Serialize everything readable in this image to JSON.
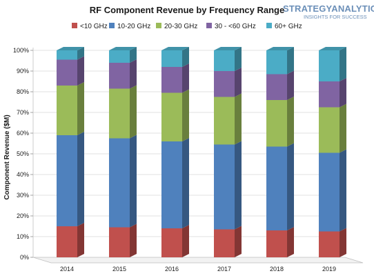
{
  "header": {
    "brand_name": "STRATEGYANALYTICS",
    "brand_tagline": "INSIGHTS FOR SUCCESS"
  },
  "colors": {
    "lt10": "#c0504d",
    "g10_20": "#4f81bd",
    "g20_30": "#9bbb59",
    "g30_60": "#8064a2",
    "g60p": "#4bacc6",
    "brand": "#6b8fb8"
  },
  "chart_data": {
    "type": "bar",
    "stacked": true,
    "percent": true,
    "title": "RF Component Revenue by Frequency Range",
    "xlabel": "",
    "ylabel": "Component Revenue ($M)",
    "categories": [
      "2014",
      "2015",
      "2016",
      "2017",
      "2018",
      "2019"
    ],
    "y_ticks": [
      "0%",
      "10%",
      "20%",
      "30%",
      "40%",
      "50%",
      "60%",
      "70%",
      "80%",
      "90%",
      "100%"
    ],
    "ylim": [
      0,
      100
    ],
    "legend_position": "top",
    "series": [
      {
        "name": "<10 GHz",
        "color_key": "lt10",
        "values": [
          15,
          14.5,
          14,
          13.5,
          13,
          12.5
        ]
      },
      {
        "name": "10-20 GHz",
        "color_key": "g10_20",
        "values": [
          44,
          43,
          42,
          41,
          40.5,
          38
        ]
      },
      {
        "name": "20-30 GHz",
        "color_key": "g20_30",
        "values": [
          24,
          24,
          23.5,
          23,
          22.5,
          22
        ]
      },
      {
        "name": "30 - <60 GHz",
        "color_key": "g30_60",
        "values": [
          12.5,
          12.5,
          12.5,
          12.5,
          12.5,
          12.5
        ]
      },
      {
        "name": "60+ GHz",
        "color_key": "g60p",
        "values": [
          4.5,
          6,
          8,
          10,
          11.5,
          15
        ]
      }
    ]
  }
}
